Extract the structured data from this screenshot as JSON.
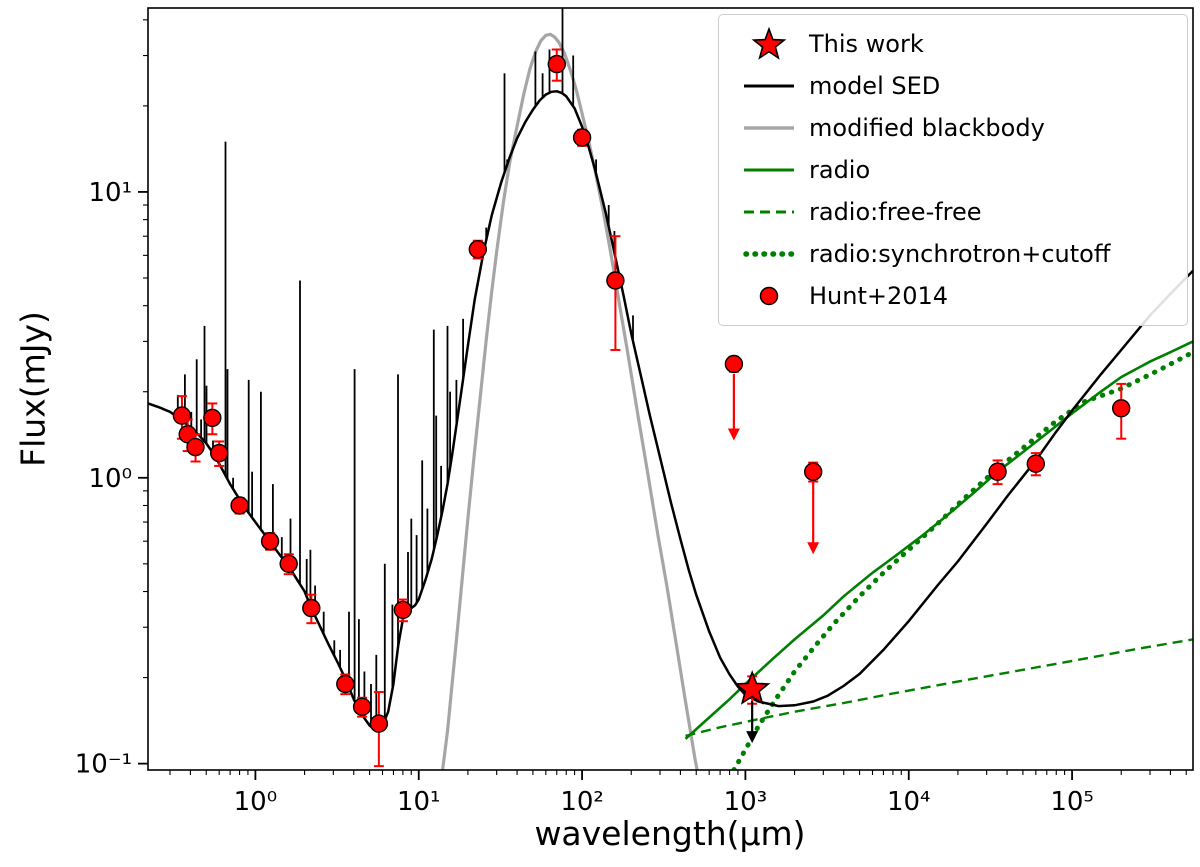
{
  "figure": {
    "xlabel": "wavelength(μm)",
    "ylabel": "Flux(mJy)"
  },
  "legend": {
    "items": [
      {
        "key": "this-work",
        "label": "This work",
        "marker": "red-star"
      },
      {
        "key": "model-sed",
        "label": "model SED",
        "marker": "black-line"
      },
      {
        "key": "modified-blackbody",
        "label": "modified blackbody",
        "marker": "gray-line"
      },
      {
        "key": "radio",
        "label": "radio",
        "marker": "green-line"
      },
      {
        "key": "radio-free-free",
        "label": "radio:free-free",
        "marker": "green-dashed-line"
      },
      {
        "key": "radio-synchrotron-cutoff",
        "label": "radio:synchrotron+cutoff",
        "marker": "green-dotted-line"
      },
      {
        "key": "hunt-2014",
        "label": "Hunt+2014",
        "marker": "red-circle"
      }
    ]
  },
  "chart_data": {
    "type": "line",
    "title": "",
    "xlabel": "wavelength(μm)",
    "ylabel": "Flux(mJy)",
    "xscale": "log",
    "yscale": "log",
    "xlim": [
      0.22,
      550000
    ],
    "ylim": [
      0.095,
      44
    ],
    "grid": false,
    "legend_position": "upper right",
    "colors": {
      "model": "#000000",
      "blackbody": "#a6a6a6",
      "radio": "#007f00",
      "data": "#ff0000",
      "edge": "#000000"
    },
    "xticks": [
      {
        "v": 1,
        "label": "10⁰"
      },
      {
        "v": 10,
        "label": "10¹"
      },
      {
        "v": 100,
        "label": "10²"
      },
      {
        "v": 1000,
        "label": "10³"
      },
      {
        "v": 10000,
        "label": "10⁴"
      },
      {
        "v": 100000,
        "label": "10⁵"
      }
    ],
    "yticks": [
      {
        "v": 0.1,
        "label": "10⁻¹"
      },
      {
        "v": 1,
        "label": "10⁰"
      },
      {
        "v": 10,
        "label": "10¹"
      }
    ],
    "series": [
      {
        "name": "modified blackbody",
        "color": "#a6a6a6",
        "width": 3.2,
        "points": [
          [
            14,
            0.095
          ],
          [
            15,
            0.13
          ],
          [
            16,
            0.19
          ],
          [
            17,
            0.27
          ],
          [
            18,
            0.38
          ],
          [
            20,
            0.72
          ],
          [
            22,
            1.25
          ],
          [
            24,
            2.0
          ],
          [
            26,
            3.1
          ],
          [
            28,
            4.5
          ],
          [
            30,
            6.2
          ],
          [
            33,
            9.2
          ],
          [
            36,
            12.6
          ],
          [
            40,
            17.0
          ],
          [
            44,
            22.0
          ],
          [
            48,
            27.0
          ],
          [
            52,
            31.0
          ],
          [
            56,
            33.8
          ],
          [
            60,
            35.3
          ],
          [
            64,
            35.6
          ],
          [
            68,
            34.8
          ],
          [
            72,
            33.4
          ],
          [
            78,
            30.6
          ],
          [
            85,
            26.6
          ],
          [
            92,
            22.8
          ],
          [
            100,
            18.8
          ],
          [
            110,
            15.0
          ],
          [
            120,
            11.9
          ],
          [
            135,
            8.5
          ],
          [
            150,
            6.1
          ],
          [
            170,
            4.0
          ],
          [
            190,
            2.75
          ],
          [
            220,
            1.65
          ],
          [
            250,
            1.07
          ],
          [
            290,
            0.64
          ],
          [
            330,
            0.42
          ],
          [
            380,
            0.255
          ],
          [
            430,
            0.165
          ],
          [
            490,
            0.105
          ],
          [
            540,
            0.078
          ]
        ]
      },
      {
        "name": "radio free-free",
        "color": "#007f00",
        "width": 2.4,
        "dash": "10 6",
        "points": [
          [
            430,
            0.125
          ],
          [
            700,
            0.134
          ],
          [
            1200,
            0.143
          ],
          [
            2000,
            0.152
          ],
          [
            4000,
            0.163
          ],
          [
            8000,
            0.176
          ],
          [
            15000,
            0.188
          ],
          [
            30000,
            0.202
          ],
          [
            60000,
            0.217
          ],
          [
            120000,
            0.233
          ],
          [
            250000,
            0.252
          ],
          [
            550000,
            0.272
          ]
        ]
      },
      {
        "name": "radio synchrotron cutoff",
        "color": "#007f00",
        "width": 5,
        "dash": "0.5 9",
        "linecap": "round",
        "points": [
          [
            850,
            0.095
          ],
          [
            1000,
            0.112
          ],
          [
            1200,
            0.135
          ],
          [
            1500,
            0.165
          ],
          [
            2000,
            0.21
          ],
          [
            2700,
            0.26
          ],
          [
            3500,
            0.31
          ],
          [
            5000,
            0.385
          ],
          [
            7000,
            0.465
          ],
          [
            10000,
            0.56
          ],
          [
            15000,
            0.69
          ],
          [
            22000,
            0.85
          ],
          [
            32000,
            1.03
          ],
          [
            50000,
            1.27
          ],
          [
            80000,
            1.58
          ],
          [
            120000,
            1.85
          ],
          [
            200000,
            2.05
          ],
          [
            350000,
            2.4
          ],
          [
            550000,
            2.75
          ]
        ]
      },
      {
        "name": "radio",
        "color": "#007f00",
        "width": 2.6,
        "points": [
          [
            430,
            0.122
          ],
          [
            600,
            0.145
          ],
          [
            800,
            0.168
          ],
          [
            1000,
            0.19
          ],
          [
            1500,
            0.235
          ],
          [
            2000,
            0.272
          ],
          [
            3000,
            0.33
          ],
          [
            4000,
            0.385
          ],
          [
            6000,
            0.465
          ],
          [
            8000,
            0.525
          ],
          [
            12000,
            0.625
          ],
          [
            17000,
            0.735
          ],
          [
            25000,
            0.885
          ],
          [
            35000,
            1.05
          ],
          [
            50000,
            1.23
          ],
          [
            70000,
            1.43
          ],
          [
            100000,
            1.68
          ],
          [
            150000,
            2.0
          ],
          [
            200000,
            2.25
          ],
          [
            300000,
            2.55
          ],
          [
            400000,
            2.75
          ],
          [
            550000,
            3.0
          ]
        ]
      },
      {
        "name": "model SED",
        "color": "#000000",
        "width": 2.5,
        "points": [
          [
            0.22,
            1.82
          ],
          [
            0.26,
            1.76
          ],
          [
            0.3,
            1.7
          ],
          [
            0.35,
            1.6
          ],
          [
            0.4,
            1.5
          ],
          [
            0.45,
            1.41
          ],
          [
            0.5,
            1.32
          ],
          [
            0.55,
            1.22
          ],
          [
            0.6,
            1.12
          ],
          [
            0.7,
            0.95
          ],
          [
            0.8,
            0.84
          ],
          [
            0.9,
            0.76
          ],
          [
            1.0,
            0.7
          ],
          [
            1.1,
            0.65
          ],
          [
            1.25,
            0.59
          ],
          [
            1.4,
            0.54
          ],
          [
            1.6,
            0.49
          ],
          [
            1.8,
            0.44
          ],
          [
            2.0,
            0.4
          ],
          [
            2.2,
            0.35
          ],
          [
            2.5,
            0.3
          ],
          [
            2.8,
            0.262
          ],
          [
            3.2,
            0.225
          ],
          [
            3.6,
            0.195
          ],
          [
            4.0,
            0.168
          ],
          [
            4.5,
            0.148
          ],
          [
            5.0,
            0.136
          ],
          [
            5.5,
            0.13
          ],
          [
            6.0,
            0.136
          ],
          [
            6.5,
            0.152
          ],
          [
            7.0,
            0.19
          ],
          [
            7.5,
            0.26
          ],
          [
            8.0,
            0.32
          ],
          [
            8.5,
            0.345
          ],
          [
            9.0,
            0.35
          ],
          [
            9.5,
            0.358
          ],
          [
            10,
            0.375
          ],
          [
            11,
            0.44
          ],
          [
            12,
            0.52
          ],
          [
            13,
            0.63
          ],
          [
            14,
            0.77
          ],
          [
            15,
            0.95
          ],
          [
            16,
            1.2
          ],
          [
            18,
            1.9
          ],
          [
            20,
            2.9
          ],
          [
            22,
            4.2
          ],
          [
            25,
            6.2
          ],
          [
            28,
            8.3
          ],
          [
            32,
            10.8
          ],
          [
            36,
            13.2
          ],
          [
            40,
            15.4
          ],
          [
            45,
            17.6
          ],
          [
            50,
            19.4
          ],
          [
            55,
            20.9
          ],
          [
            60,
            21.9
          ],
          [
            65,
            22.4
          ],
          [
            70,
            22.5
          ],
          [
            75,
            22.2
          ],
          [
            80,
            21.6
          ],
          [
            90,
            19.6
          ],
          [
            100,
            16.9
          ],
          [
            110,
            14.3
          ],
          [
            120,
            12.0
          ],
          [
            140,
            8.4
          ],
          [
            160,
            5.9
          ],
          [
            180,
            4.3
          ],
          [
            200,
            3.2
          ],
          [
            230,
            2.25
          ],
          [
            260,
            1.65
          ],
          [
            300,
            1.18
          ],
          [
            350,
            0.82
          ],
          [
            400,
            0.61
          ],
          [
            450,
            0.475
          ],
          [
            500,
            0.39
          ],
          [
            600,
            0.29
          ],
          [
            700,
            0.235
          ],
          [
            800,
            0.205
          ],
          [
            900,
            0.186
          ],
          [
            1000,
            0.174
          ],
          [
            1200,
            0.165
          ],
          [
            1600,
            0.159
          ],
          [
            2000,
            0.16
          ],
          [
            2600,
            0.165
          ],
          [
            3200,
            0.173
          ],
          [
            4000,
            0.187
          ],
          [
            5000,
            0.206
          ],
          [
            7000,
            0.25
          ],
          [
            10000,
            0.315
          ],
          [
            15000,
            0.42
          ],
          [
            20000,
            0.51
          ],
          [
            30000,
            0.69
          ],
          [
            40000,
            0.86
          ],
          [
            60000,
            1.15
          ],
          [
            80000,
            1.45
          ],
          [
            100000,
            1.72
          ],
          [
            150000,
            2.3
          ],
          [
            200000,
            2.8
          ],
          [
            300000,
            3.7
          ],
          [
            400000,
            4.4
          ],
          [
            550000,
            5.3
          ]
        ]
      }
    ],
    "spikes": [
      [
        0.335,
        1.95
      ],
      [
        0.37,
        2.3
      ],
      [
        0.405,
        1.7
      ],
      [
        0.437,
        2.6
      ],
      [
        0.465,
        1.6
      ],
      [
        0.488,
        3.4
      ],
      [
        0.502,
        2.1
      ],
      [
        0.55,
        1.35
      ],
      [
        0.59,
        1.28
      ],
      [
        0.656,
        15.0
      ],
      [
        0.675,
        2.4
      ],
      [
        0.73,
        1.0
      ],
      [
        0.91,
        2.2
      ],
      [
        0.955,
        1.05
      ],
      [
        1.08,
        2.0
      ],
      [
        1.28,
        0.95
      ],
      [
        1.45,
        0.62
      ],
      [
        1.64,
        0.72
      ],
      [
        1.875,
        4.9
      ],
      [
        2.06,
        0.52
      ],
      [
        2.17,
        0.56
      ],
      [
        2.32,
        0.42
      ],
      [
        2.62,
        0.34
      ],
      [
        3.04,
        0.27
      ],
      [
        3.3,
        0.25
      ],
      [
        3.74,
        0.34
      ],
      [
        4.05,
        2.4
      ],
      [
        4.3,
        0.32
      ],
      [
        4.65,
        0.21
      ],
      [
        5.1,
        0.19
      ],
      [
        5.5,
        0.24
      ],
      [
        6.2,
        0.5
      ],
      [
        6.9,
        0.36
      ],
      [
        7.46,
        2.3
      ],
      [
        8.6,
        0.55
      ],
      [
        9.0,
        0.72
      ],
      [
        9.7,
        0.63
      ],
      [
        10.5,
        1.15
      ],
      [
        11.3,
        0.78
      ],
      [
        12.37,
        3.3
      ],
      [
        12.8,
        1.65
      ],
      [
        13.7,
        1.1
      ],
      [
        15.0,
        3.4
      ],
      [
        15.55,
        2.0
      ],
      [
        17.0,
        2.2
      ],
      [
        18.7,
        3.6
      ],
      [
        25.9,
        7.5
      ],
      [
        33.5,
        26.0
      ],
      [
        34.8,
        13.0
      ],
      [
        51.8,
        31.0
      ],
      [
        57.3,
        26.0
      ],
      [
        63.2,
        31.5
      ],
      [
        75.9,
        50.0
      ],
      [
        88.3,
        30.0
      ],
      [
        121.9,
        13.0
      ],
      [
        145.5,
        9.0
      ],
      [
        157.7,
        7.3
      ],
      [
        205.0,
        3.7
      ]
    ],
    "points": [
      [
        0.355,
        1.65,
        0.28
      ],
      [
        0.385,
        1.42,
        0.18
      ],
      [
        0.43,
        1.28,
        0.14
      ],
      [
        0.545,
        1.62,
        0.2
      ],
      [
        0.6,
        1.22,
        0.12
      ],
      [
        0.8,
        0.8,
        0.05
      ],
      [
        1.23,
        0.6,
        0.04
      ],
      [
        1.6,
        0.5,
        0.04
      ],
      [
        2.2,
        0.35,
        0.04
      ],
      [
        3.55,
        0.19,
        0.015
      ],
      [
        4.5,
        0.158,
        0.012
      ],
      [
        5.7,
        0.138,
        0.04
      ],
      [
        8.0,
        0.345,
        0.03
      ],
      [
        23,
        6.3,
        0.45
      ],
      [
        70,
        28.0,
        3.5
      ],
      [
        100,
        15.5,
        1.0
      ],
      [
        160,
        4.9,
        2.1
      ],
      [
        850,
        2.5,
        0.15,
        1.35
      ],
      [
        2600,
        1.05,
        0.08,
        0.54
      ],
      [
        35000,
        1.05,
        0.1
      ],
      [
        60000,
        1.12,
        0.1
      ],
      [
        200000,
        1.75,
        0.38
      ]
    ],
    "star": {
      "x": 1100,
      "y": 0.182,
      "err": 0.02,
      "limit": 0.118
    }
  }
}
